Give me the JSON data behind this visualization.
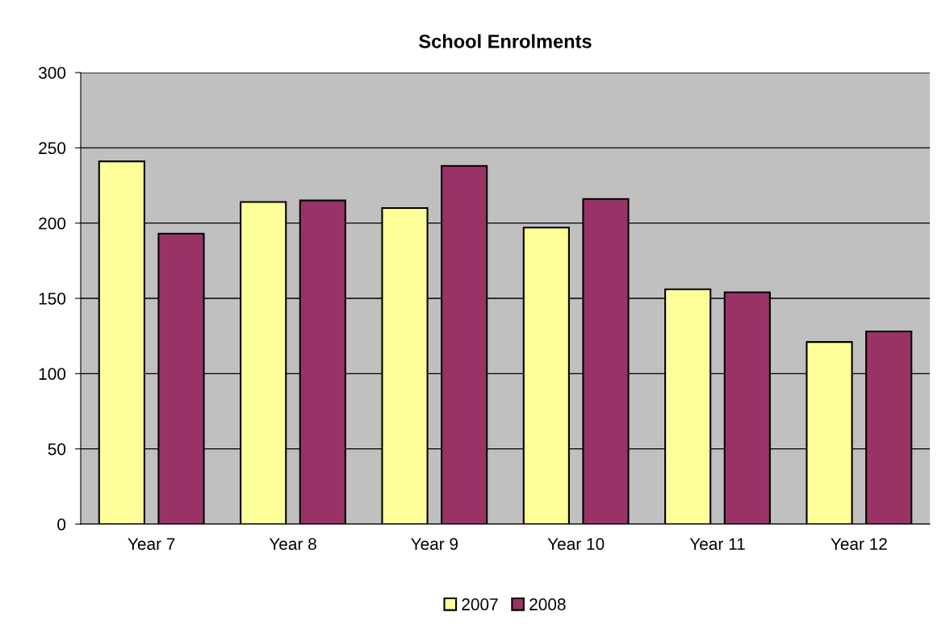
{
  "chart_data": {
    "type": "bar",
    "title": "School Enrolments",
    "categories": [
      "Year 7",
      "Year 8",
      "Year 9",
      "Year 10",
      "Year 11",
      "Year 12"
    ],
    "series": [
      {
        "name": "2007",
        "color": "#ffff99",
        "values": [
          241,
          214,
          210,
          197,
          156,
          121
        ]
      },
      {
        "name": "2008",
        "color": "#993366",
        "values": [
          193,
          215,
          238,
          216,
          154,
          128
        ]
      }
    ],
    "ylim": [
      0,
      300
    ],
    "yticks": [
      0,
      50,
      100,
      150,
      200,
      250,
      300
    ],
    "grid": "y",
    "legend": "bottom"
  }
}
